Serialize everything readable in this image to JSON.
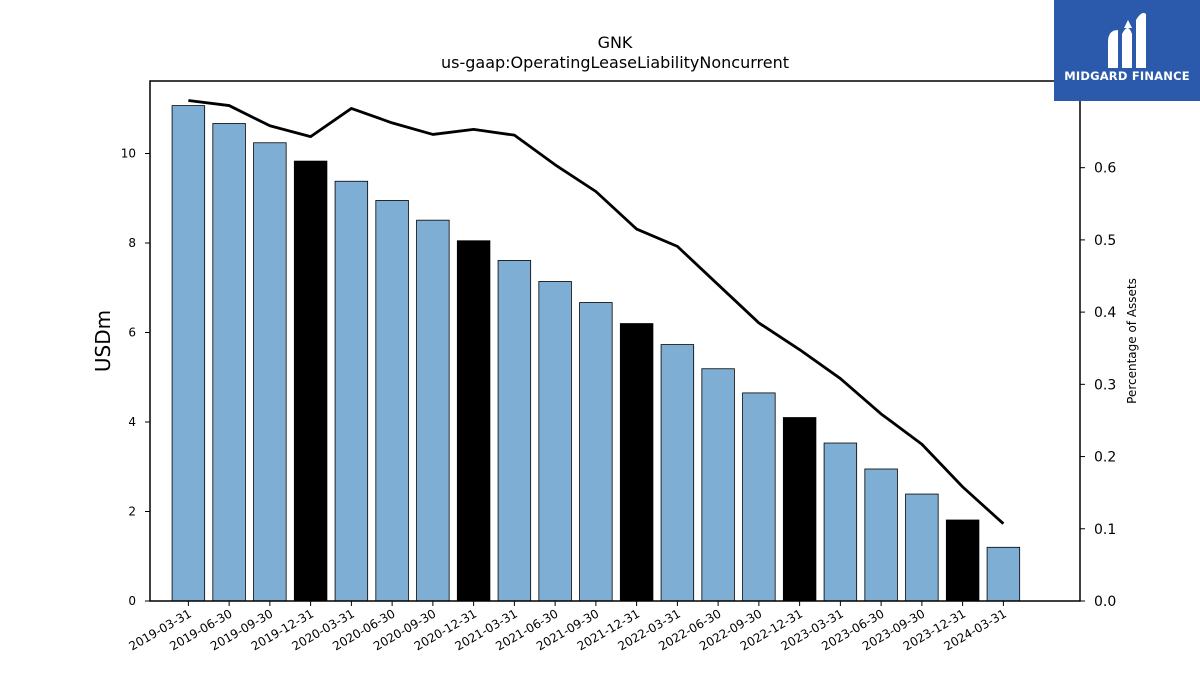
{
  "chart_data": {
    "type": "bar",
    "title": "GNK",
    "subtitle": "us-gaap:OperatingLeaseLiabilityNoncurrent",
    "xlabel": "",
    "ylabel": "USDm",
    "y2label": "Percentage of Assets",
    "categories": [
      "2019-03-31",
      "2019-06-30",
      "2019-09-30",
      "2019-12-31",
      "2020-03-31",
      "2020-06-30",
      "2020-09-30",
      "2020-12-31",
      "2021-03-31",
      "2021-06-30",
      "2021-09-30",
      "2021-12-31",
      "2022-03-31",
      "2022-06-30",
      "2022-09-30",
      "2022-12-31",
      "2023-03-31",
      "2023-06-30",
      "2023-09-30",
      "2023-12-31",
      "2024-03-31"
    ],
    "series": [
      {
        "type": "bar",
        "axis": "left",
        "values": [
          11.07,
          10.67,
          10.24,
          9.83,
          9.38,
          8.95,
          8.51,
          8.05,
          7.61,
          7.14,
          6.67,
          6.2,
          5.73,
          5.19,
          4.65,
          4.1,
          3.53,
          2.95,
          2.39,
          1.81,
          1.2
        ],
        "color": "#7eaed3",
        "highlight_color": "#000000",
        "highlight_categories": [
          "2019-12-31",
          "2020-12-31",
          "2021-12-31",
          "2022-12-31",
          "2023-12-31"
        ]
      },
      {
        "type": "line",
        "axis": "right",
        "values": [
          0.693,
          0.686,
          0.658,
          0.643,
          0.682,
          0.662,
          0.646,
          0.653,
          0.645,
          0.604,
          0.567,
          0.515,
          0.491,
          0.438,
          0.385,
          0.348,
          0.308,
          0.259,
          0.217,
          0.158,
          0.107
        ],
        "color": "#000000"
      }
    ],
    "ylim": [
      0,
      11.62
    ],
    "y_ticks": [
      0,
      2,
      4,
      6,
      8,
      10
    ],
    "y2lim": [
      0,
      0.72
    ],
    "y2_ticks": [
      "0.0",
      "0.1",
      "0.2",
      "0.3",
      "0.4",
      "0.5",
      "0.6"
    ],
    "grid": false,
    "legend": "none"
  },
  "logo": {
    "text": "MIDGARD FINANCE",
    "background": "#2b5aad"
  }
}
